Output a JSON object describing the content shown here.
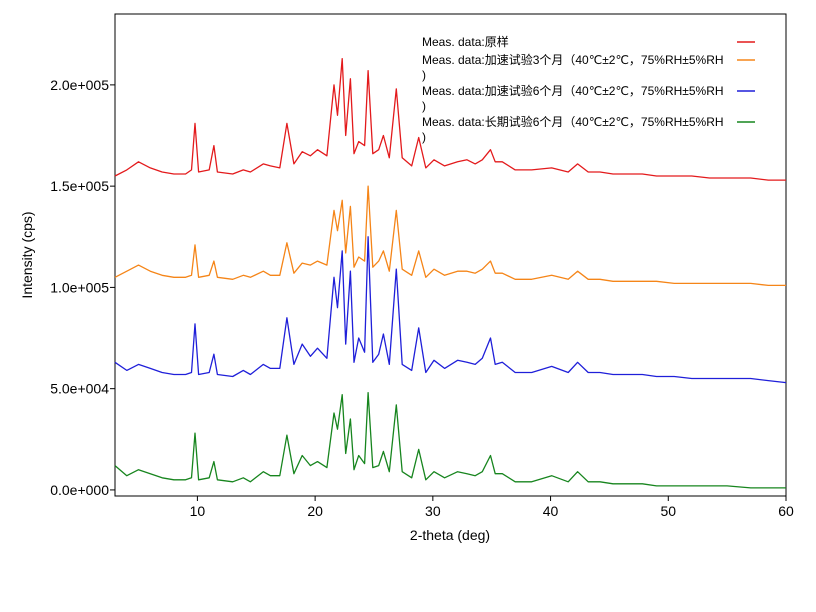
{
  "chart_data": {
    "type": "line",
    "title": "",
    "xlabel": "2-theta (deg)",
    "ylabel": "Intensity (cps)",
    "xlim": [
      3,
      60
    ],
    "ylim": [
      -3000,
      235000
    ],
    "x_ticks": [
      {
        "value": 10,
        "label": "10"
      },
      {
        "value": 20,
        "label": "20"
      },
      {
        "value": 30,
        "label": "30"
      },
      {
        "value": 40,
        "label": "40"
      },
      {
        "value": 50,
        "label": "50"
      },
      {
        "value": 60,
        "label": "60"
      }
    ],
    "y_ticks": [
      {
        "value": 0,
        "label": "0.0e+000"
      },
      {
        "value": 50000,
        "label": "5.0e+004"
      },
      {
        "value": 100000,
        "label": "1.0e+005"
      },
      {
        "value": 150000,
        "label": "1.5e+005"
      },
      {
        "value": 200000,
        "label": "2.0e+005"
      }
    ],
    "grid": false,
    "legend_position": "top-right",
    "legend_wrap_char": ")",
    "series": [
      {
        "name": "Meas. data:原样",
        "color": "#e31a1c",
        "x": [
          3,
          4,
          5,
          6,
          7,
          8,
          9,
          9.5,
          9.8,
          10.1,
          11,
          11.4,
          11.7,
          13,
          13.9,
          14.5,
          15.6,
          16.2,
          17,
          17.6,
          18.2,
          18.9,
          19.6,
          20.2,
          21,
          21.6,
          21.9,
          22.3,
          22.6,
          23,
          23.3,
          23.7,
          24.2,
          24.5,
          24.9,
          25.4,
          25.8,
          26.3,
          26.9,
          27.4,
          28.2,
          28.8,
          29.4,
          30.1,
          31,
          32.1,
          32.9,
          33.6,
          34.2,
          34.9,
          35.3,
          35.9,
          37,
          38.4,
          40.1,
          41.5,
          42.3,
          43.2,
          44.2,
          45.3,
          46.4,
          47.8,
          49,
          50.5,
          52,
          53.5,
          55,
          57,
          58.5,
          60
        ],
        "y": [
          155000,
          158000,
          162000,
          159000,
          157000,
          156000,
          156000,
          158000,
          181000,
          157000,
          158000,
          170000,
          157000,
          156000,
          158000,
          157000,
          161000,
          160000,
          159000,
          181000,
          161000,
          167000,
          165000,
          168000,
          165000,
          200000,
          185000,
          213000,
          175000,
          203000,
          166000,
          172000,
          170000,
          207000,
          166000,
          168000,
          175000,
          164000,
          198000,
          164000,
          160000,
          174000,
          159000,
          163000,
          160000,
          162000,
          163000,
          161000,
          163000,
          168000,
          162000,
          162000,
          158000,
          158000,
          159000,
          157000,
          161000,
          157000,
          157000,
          156000,
          156000,
          156000,
          155000,
          155000,
          155000,
          154000,
          154000,
          154000,
          153000,
          153000
        ]
      },
      {
        "name": "Meas. data:加速试验3个月（40℃±2℃，75%RH±5%RH）",
        "color": "#f58518",
        "x": [
          3,
          4,
          5,
          6,
          7,
          8,
          9,
          9.5,
          9.8,
          10.1,
          11,
          11.4,
          11.7,
          13,
          13.9,
          14.5,
          15.6,
          16.2,
          17,
          17.6,
          18.2,
          18.9,
          19.6,
          20.2,
          21,
          21.6,
          21.9,
          22.3,
          22.6,
          23,
          23.3,
          23.7,
          24.2,
          24.5,
          24.9,
          25.4,
          25.8,
          26.3,
          26.9,
          27.4,
          28.2,
          28.8,
          29.4,
          30.1,
          31,
          32.1,
          32.9,
          33.6,
          34.2,
          34.9,
          35.3,
          35.9,
          37,
          38.4,
          40.1,
          41.5,
          42.3,
          43.2,
          44.2,
          45.3,
          46.4,
          47.8,
          49,
          50.5,
          52,
          53.5,
          55,
          57,
          58.5,
          60
        ],
        "y": [
          105000,
          108000,
          111000,
          108000,
          106000,
          105000,
          105000,
          106000,
          121000,
          105000,
          106000,
          113000,
          105000,
          104000,
          106000,
          105000,
          108000,
          106000,
          106000,
          122000,
          107000,
          112000,
          111000,
          113000,
          111000,
          138000,
          128000,
          143000,
          117000,
          140000,
          110000,
          115000,
          113000,
          150000,
          110000,
          113000,
          118000,
          108000,
          138000,
          109000,
          106000,
          118000,
          105000,
          109000,
          106000,
          108000,
          108000,
          107000,
          109000,
          113000,
          107000,
          107000,
          104000,
          104000,
          106000,
          104000,
          108000,
          104000,
          104000,
          103000,
          103000,
          103000,
          103000,
          102000,
          102000,
          102000,
          102000,
          102000,
          101000,
          101000
        ]
      },
      {
        "name": "Meas. data:加速试验6个月（40℃±2℃，75%RH±5%RH）",
        "color": "#1f1fd9",
        "x": [
          3,
          4,
          5,
          6,
          7,
          8,
          9,
          9.5,
          9.8,
          10.1,
          11,
          11.4,
          11.7,
          13,
          13.9,
          14.5,
          15.6,
          16.2,
          17,
          17.6,
          18.2,
          18.9,
          19.6,
          20.2,
          21,
          21.6,
          21.9,
          22.3,
          22.6,
          23,
          23.3,
          23.7,
          24.2,
          24.5,
          24.9,
          25.4,
          25.8,
          26.3,
          26.9,
          27.4,
          28.2,
          28.8,
          29.4,
          30.1,
          31,
          32.1,
          32.9,
          33.6,
          34.2,
          34.9,
          35.3,
          35.9,
          37,
          38.4,
          40.1,
          41.5,
          42.3,
          43.2,
          44.2,
          45.3,
          46.4,
          47.8,
          49,
          50.5,
          52,
          53.5,
          55,
          57,
          58.5,
          60
        ],
        "y": [
          63000,
          59000,
          62000,
          60000,
          58000,
          57000,
          57000,
          58000,
          82000,
          57000,
          58000,
          67000,
          57000,
          56000,
          59000,
          57000,
          62000,
          60000,
          60000,
          85000,
          62000,
          72000,
          66000,
          70000,
          65000,
          105000,
          90000,
          118000,
          72000,
          108000,
          63000,
          75000,
          68000,
          125000,
          63000,
          67000,
          77000,
          62000,
          109000,
          62000,
          59000,
          80000,
          58000,
          64000,
          60000,
          64000,
          63000,
          62000,
          65000,
          75000,
          62000,
          63000,
          58000,
          58000,
          61000,
          58000,
          63000,
          58000,
          58000,
          57000,
          57000,
          57000,
          56000,
          56000,
          55000,
          55000,
          55000,
          55000,
          54000,
          53000
        ]
      },
      {
        "name": "Meas. data:长期试验6个月（40℃±2℃，75%RH±5%RH）",
        "color": "#17851e",
        "x": [
          3,
          4,
          5,
          6,
          7,
          8,
          9,
          9.5,
          9.8,
          10.1,
          11,
          11.4,
          11.7,
          13,
          13.9,
          14.5,
          15.6,
          16.2,
          17,
          17.6,
          18.2,
          18.9,
          19.6,
          20.2,
          21,
          21.6,
          21.9,
          22.3,
          22.6,
          23,
          23.3,
          23.7,
          24.2,
          24.5,
          24.9,
          25.4,
          25.8,
          26.3,
          26.9,
          27.4,
          28.2,
          28.8,
          29.4,
          30.1,
          31,
          32.1,
          32.9,
          33.6,
          34.2,
          34.9,
          35.3,
          35.9,
          37,
          38.4,
          40.1,
          41.5,
          42.3,
          43.2,
          44.2,
          45.3,
          46.4,
          47.8,
          49,
          50.5,
          52,
          53.5,
          55,
          57,
          58.5,
          60
        ],
        "y": [
          12000,
          7000,
          10000,
          8000,
          6000,
          5000,
          5000,
          6000,
          28000,
          5000,
          6000,
          14000,
          5000,
          4000,
          6000,
          4000,
          9000,
          7000,
          7000,
          27000,
          8000,
          17000,
          12000,
          14000,
          11000,
          38000,
          30000,
          47000,
          18000,
          35000,
          10000,
          17000,
          13000,
          48000,
          11000,
          12000,
          19000,
          9000,
          42000,
          9000,
          6000,
          20000,
          5000,
          9000,
          6000,
          9000,
          8000,
          7000,
          9000,
          17000,
          8000,
          8000,
          4000,
          4000,
          7000,
          4000,
          9000,
          4000,
          4000,
          3000,
          3000,
          3000,
          2000,
          2000,
          2000,
          2000,
          2000,
          1000,
          1000,
          1000
        ]
      }
    ]
  }
}
